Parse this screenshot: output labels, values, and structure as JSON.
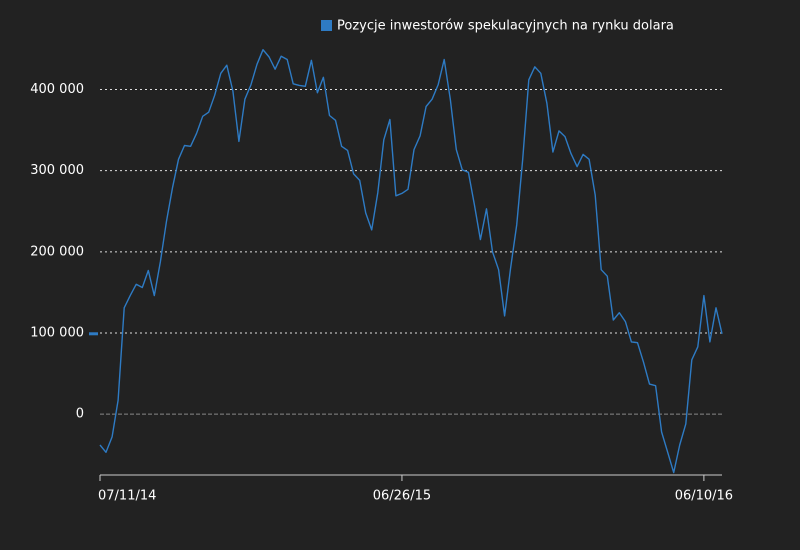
{
  "chart_data": {
    "type": "line",
    "legend": "top-right",
    "grid": true,
    "categories": [
      "07/11/14",
      null,
      null,
      null,
      null,
      null,
      null,
      null,
      null,
      null,
      null,
      null,
      null,
      null,
      null,
      null,
      null,
      null,
      null,
      null,
      null,
      null,
      null,
      null,
      null,
      null,
      null,
      null,
      null,
      null,
      null,
      null,
      null,
      null,
      null,
      null,
      null,
      null,
      null,
      null,
      null,
      null,
      null,
      null,
      null,
      null,
      null,
      null,
      null,
      null,
      "06/26/15",
      null,
      null,
      null,
      null,
      null,
      null,
      null,
      null,
      null,
      null,
      null,
      null,
      null,
      null,
      null,
      null,
      null,
      null,
      null,
      null,
      null,
      null,
      null,
      null,
      null,
      null,
      null,
      null,
      null,
      null,
      null,
      null,
      null,
      null,
      null,
      null,
      null,
      null,
      null,
      null,
      null,
      null,
      null,
      null,
      null,
      null,
      null,
      null,
      null,
      "06/10/16",
      null,
      null,
      null
    ],
    "series": [
      {
        "name": "Pozycje inwestorów spekulacyjnych na rynku dolara",
        "color": "#2e7bc4",
        "values": [
          -38000,
          -47000,
          -28000,
          17000,
          131000,
          146000,
          160000,
          156000,
          177000,
          146000,
          188000,
          237000,
          279000,
          314000,
          331000,
          330000,
          346000,
          367000,
          372000,
          393000,
          420000,
          430000,
          398000,
          336000,
          388000,
          406000,
          431000,
          449000,
          440000,
          425000,
          441000,
          437000,
          407000,
          405000,
          404000,
          436000,
          396000,
          415000,
          368000,
          362000,
          330000,
          325000,
          296000,
          288000,
          248000,
          227000,
          273000,
          338000,
          363000,
          269000,
          272000,
          277000,
          326000,
          343000,
          379000,
          388000,
          406000,
          437000,
          388000,
          326000,
          301000,
          298000,
          258000,
          215000,
          253000,
          200000,
          178000,
          121000,
          180000,
          233000,
          314000,
          412000,
          428000,
          420000,
          383000,
          323000,
          349000,
          342000,
          321000,
          305000,
          320000,
          314000,
          270000,
          178000,
          170000,
          116000,
          125000,
          114000,
          89000,
          88000,
          64000,
          37000,
          35000,
          -22000,
          -47000,
          -72000,
          -38000,
          -12000,
          67000,
          83000,
          146000,
          89000,
          131000,
          99000
        ]
      }
    ],
    "ylim": [
      -75000,
      461000
    ],
    "yticks": [
      0,
      {
        "value": 100000,
        "label": "100 000"
      },
      {
        "value": 200000,
        "label": "200 000"
      },
      {
        "value": 300000,
        "label": "300 000"
      },
      {
        "value": 400000,
        "label": "400 000"
      }
    ]
  }
}
